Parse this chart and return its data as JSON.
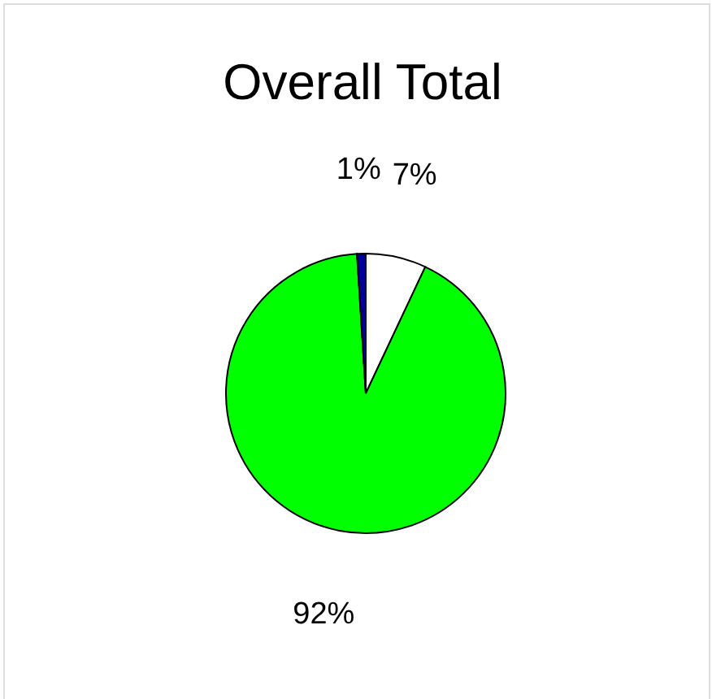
{
  "chart_data": {
    "type": "pie",
    "title": "Overall Total",
    "categories": [
      null,
      null,
      null
    ],
    "values": [
      7,
      92,
      1
    ],
    "colors": [
      "#ffffff",
      "#00ff00",
      "#000099"
    ],
    "value_labels": [
      "7%",
      "92%",
      "1%"
    ],
    "legend": false
  }
}
